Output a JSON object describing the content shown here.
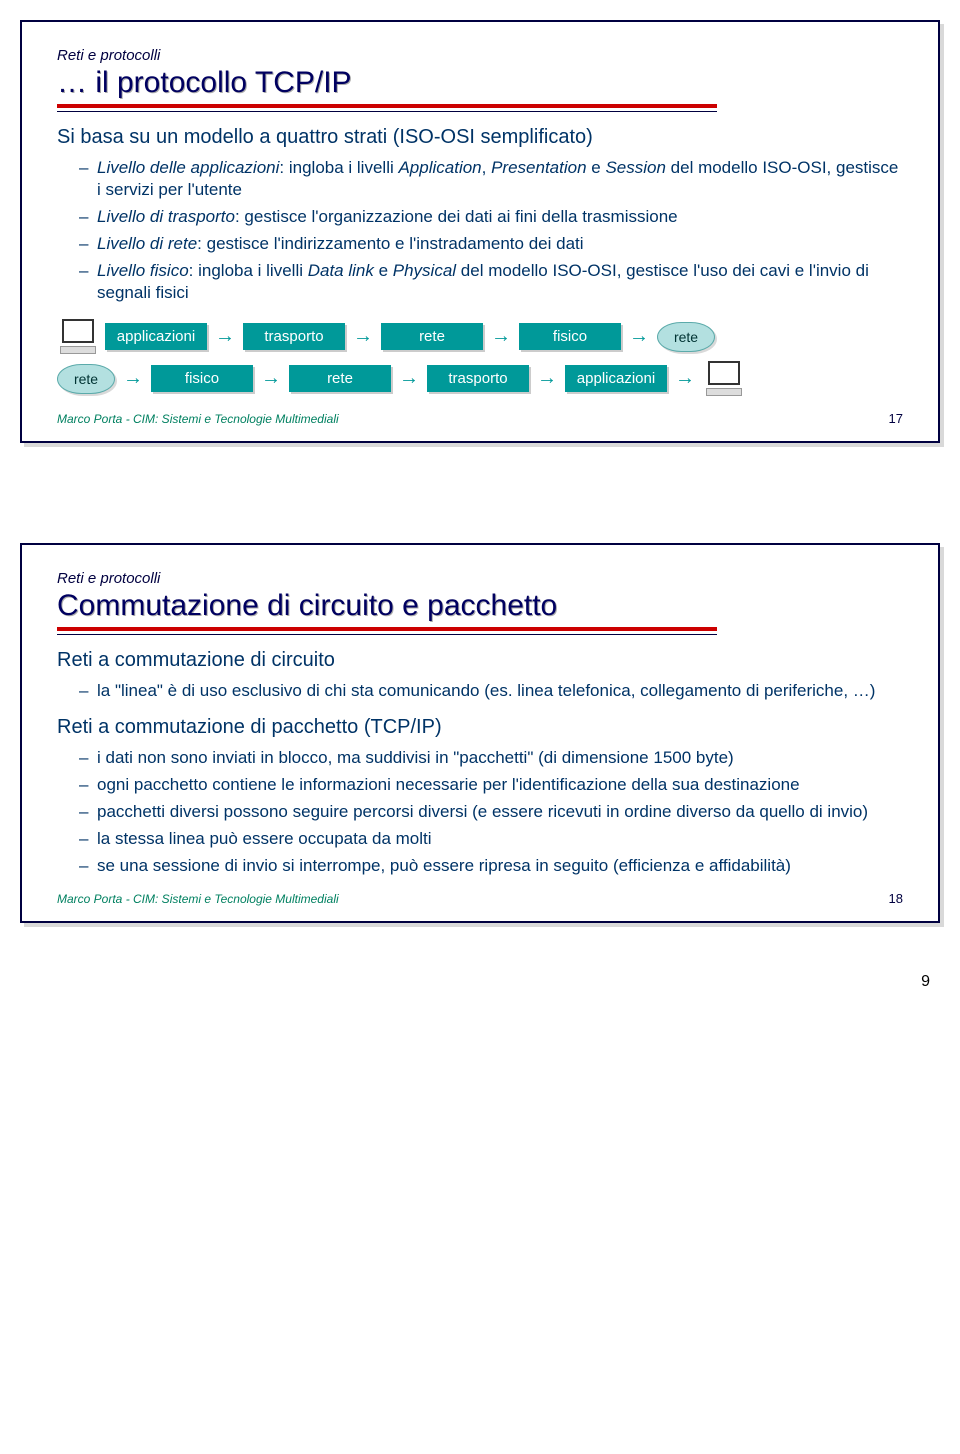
{
  "colors": {
    "text_blue": "#003366",
    "dark_blue": "#000040",
    "rule_red": "#cc0000",
    "box_bg": "#009999",
    "box_text": "#ffffff",
    "cloud_bg": "#b3e0e0",
    "cloud_border": "#5baaaa",
    "footer_green": "#008060"
  },
  "slide1": {
    "pretitle": "Reti e protocolli",
    "title": "… il protocollo TCP/IP",
    "lead": "Si basa su un modello a quattro strati (ISO-OSI semplificato)",
    "b1a": "Livello delle applicazioni",
    "b1b": ": ingloba i livelli ",
    "b1c": "Application",
    "b1d": ", ",
    "b1e": "Presentation",
    "b1f": " e ",
    "b1g": "Session",
    "b1h": " del modello ISO-OSI, gestisce i servizi per l'utente",
    "b2a": "Livello di trasporto",
    "b2b": ": gestisce l'organizzazione dei dati ai fini della trasmissione",
    "b3a": "Livello di rete",
    "b3b": ": gestisce l'indirizzamento e l'instradamento dei dati",
    "b4a": "Livello fisico",
    "b4b": ": ingloba i livelli ",
    "b4c": "Data link",
    "b4d": " e ",
    "b4e": "Physical",
    "b4f": " del modello ISO-OSI, gestisce l'uso dei cavi e l'invio di segnali fisici",
    "row1": {
      "n1": "applicazioni",
      "n2": "trasporto",
      "n3": "rete",
      "n4": "fisico",
      "cloud": "rete"
    },
    "row2": {
      "cloud": "rete",
      "n1": "fisico",
      "n2": "rete",
      "n3": "trasporto",
      "n4": "applicazioni"
    },
    "footer": "Marco Porta  -  CIM: Sistemi e Tecnologie Multimediali",
    "num": "17"
  },
  "slide2": {
    "pretitle": "Reti e protocolli",
    "title": "Commutazione di circuito e pacchetto",
    "h1": "Reti a commutazione di circuito",
    "h1_b1": "la \"linea\" è di uso esclusivo di chi sta comunicando (es. linea telefonica, collegamento di periferiche, …)",
    "h2": "Reti a commutazione di pacchetto (TCP/IP)",
    "h2_b1": "i dati non sono inviati in blocco, ma suddivisi in \"pacchetti\" (di dimensione 1500 byte)",
    "h2_b2": "ogni pacchetto contiene le informazioni necessarie per l'identificazione della sua destinazione",
    "h2_b3": "pacchetti diversi possono seguire percorsi diversi (e essere ricevuti in ordine diverso da quello di invio)",
    "h2_b4": "la stessa linea può essere occupata da molti",
    "h2_b5": "se una sessione di invio si interrompe, può essere ripresa in seguito (efficienza e affidabilità)",
    "footer": "Marco Porta  -  CIM: Sistemi e Tecnologie Multimediali",
    "num": "18"
  },
  "page_number": "9"
}
